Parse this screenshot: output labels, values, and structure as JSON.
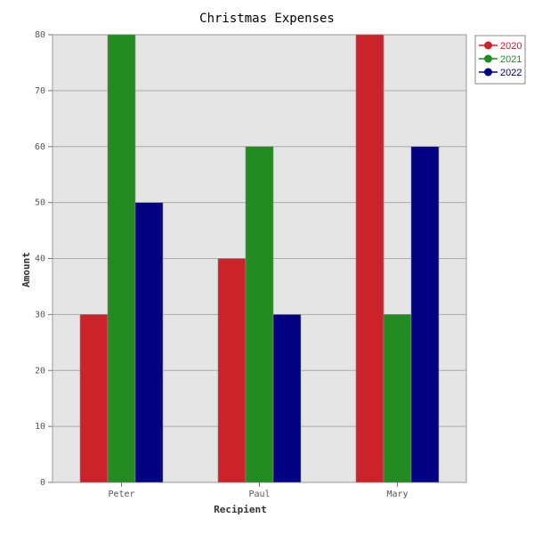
{
  "chart_data": {
    "type": "bar",
    "title": "Christmas Expenses",
    "xlabel": "Recipient",
    "ylabel": "Amount",
    "categories": [
      "Peter",
      "Paul",
      "Mary"
    ],
    "series": [
      {
        "name": "2020",
        "color": "#cc2229",
        "values": [
          30,
          40,
          80
        ]
      },
      {
        "name": "2021",
        "color": "#228b22",
        "values": [
          80,
          60,
          30
        ]
      },
      {
        "name": "2022",
        "color": "#000080",
        "values": [
          50,
          30,
          60
        ]
      }
    ],
    "ylim": [
      0,
      80
    ],
    "yticks": [
      0,
      10,
      20,
      30,
      40,
      50,
      60,
      70,
      80
    ],
    "grid": true,
    "legend_position": "top-right",
    "plot_background": "#e5e5e5"
  }
}
